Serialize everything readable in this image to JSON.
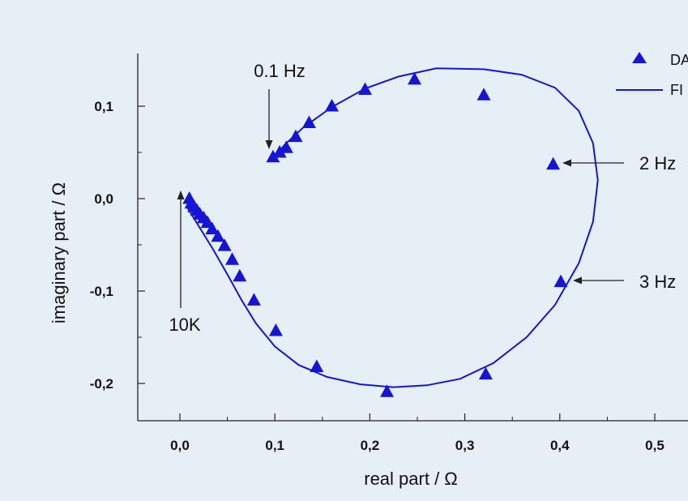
{
  "chart_data": {
    "type": "scatter",
    "title": "",
    "xlabel": "real part / Ω",
    "ylabel": "imaginary part / Ω",
    "xlim": [
      -0.04,
      0.56
    ],
    "ylim": [
      -0.24,
      0.155
    ],
    "grid": false,
    "legend_position": "top-right",
    "x_ticks": [
      0.0,
      0.1,
      0.2,
      0.3,
      0.4,
      0.5
    ],
    "x_tick_labels": [
      "0,0",
      "0,1",
      "0,2",
      "0,3",
      "0,4",
      "0,5"
    ],
    "y_ticks": [
      0.1,
      0.0,
      -0.1,
      -0.2
    ],
    "y_tick_labels": [
      "0,1",
      "0,0",
      "-0,1",
      "-0,2"
    ],
    "series": [
      {
        "name": "DA",
        "kind": "scatter",
        "marker": "triangle",
        "color": "#1515d8",
        "x": [
          0.01,
          0.012,
          0.015,
          0.018,
          0.021,
          0.025,
          0.029,
          0.034,
          0.04,
          0.047,
          0.055,
          0.063,
          0.078,
          0.101,
          0.144,
          0.218,
          0.322,
          0.401,
          0.393,
          0.32,
          0.247,
          0.195,
          0.16,
          0.136,
          0.122,
          0.112,
          0.105,
          0.098
        ],
        "y": [
          0.0,
          -0.005,
          -0.009,
          -0.013,
          -0.017,
          -0.021,
          -0.026,
          -0.033,
          -0.041,
          -0.051,
          -0.066,
          -0.084,
          -0.11,
          -0.143,
          -0.182,
          -0.209,
          -0.19,
          -0.09,
          0.037,
          0.112,
          0.129,
          0.118,
          0.1,
          0.082,
          0.067,
          0.055,
          0.05,
          0.045
        ]
      },
      {
        "name": "FI",
        "kind": "line",
        "color": "#1515d8",
        "x": [
          0.008,
          0.02,
          0.035,
          0.05,
          0.065,
          0.08,
          0.1,
          0.125,
          0.155,
          0.19,
          0.225,
          0.26,
          0.295,
          0.33,
          0.365,
          0.395,
          0.42,
          0.435,
          0.44,
          0.435,
          0.42,
          0.395,
          0.36,
          0.32,
          0.27,
          0.23,
          0.195,
          0.16,
          0.13,
          0.11,
          0.098
        ],
        "y": [
          -0.01,
          -0.03,
          -0.055,
          -0.082,
          -0.11,
          -0.135,
          -0.16,
          -0.18,
          -0.193,
          -0.201,
          -0.204,
          -0.202,
          -0.195,
          -0.178,
          -0.15,
          -0.115,
          -0.07,
          -0.025,
          0.02,
          0.06,
          0.095,
          0.12,
          0.134,
          0.14,
          0.141,
          0.132,
          0.119,
          0.099,
          0.077,
          0.058,
          0.043
        ]
      }
    ],
    "annotations": [
      {
        "text": "0.1 Hz"
      },
      {
        "text": "2 Hz"
      },
      {
        "text": "3 Hz"
      },
      {
        "text": "10K"
      }
    ]
  },
  "legend": {
    "items": [
      {
        "label": "DA"
      },
      {
        "label": "FI"
      }
    ]
  }
}
